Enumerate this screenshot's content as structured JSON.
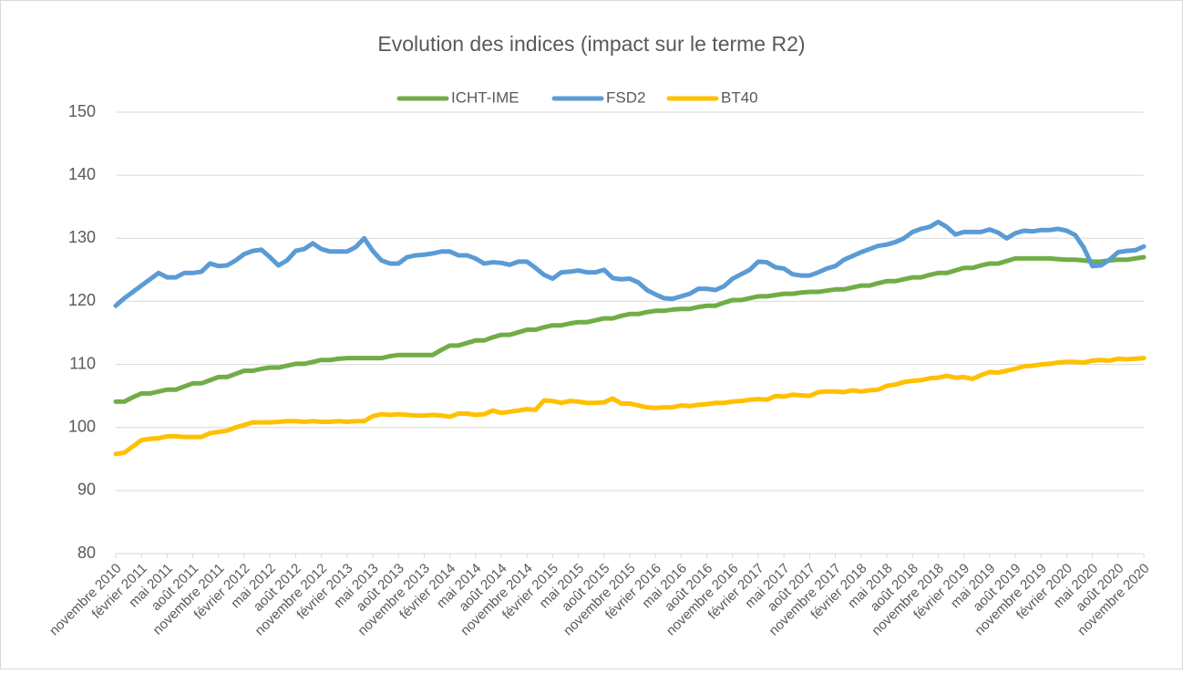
{
  "chart_data": {
    "type": "line",
    "title": "Evolution des indices (impact sur le terme R2)",
    "categories": [
      "novembre 2010",
      null,
      null,
      "février 2011",
      null,
      null,
      "mai 2011",
      null,
      null,
      "août 2011",
      null,
      null,
      "novembre 2011",
      null,
      null,
      "février 2012",
      null,
      null,
      "mai 2012",
      null,
      null,
      "août 2012",
      null,
      null,
      "novembre 2012",
      null,
      null,
      "février 2013",
      null,
      null,
      "mai 2013",
      null,
      null,
      "août 2013",
      null,
      null,
      "novembre 2013",
      null,
      null,
      "février 2014",
      null,
      null,
      "mai 2014",
      null,
      null,
      "août 2014",
      null,
      null,
      "novembre 2014",
      null,
      null,
      "février 2015",
      null,
      null,
      "mai 2015",
      null,
      null,
      "août 2015",
      null,
      null,
      "novembre 2015",
      null,
      null,
      "février 2016",
      null,
      null,
      "mai 2016",
      null,
      null,
      "août 2016",
      null,
      null,
      "novembre 2016",
      null,
      null,
      "février 2017",
      null,
      null,
      "mai 2017",
      null,
      null,
      "août 2017",
      null,
      null,
      "novembre 2017",
      null,
      null,
      "février 2018",
      null,
      null,
      "mai 2018",
      null,
      null,
      "août 2018",
      null,
      null,
      "novembre 2018",
      null,
      null,
      "février 2019",
      null,
      null,
      "mai 2019",
      null,
      null,
      "août 2019",
      null,
      null,
      "novembre 2019",
      null,
      null,
      "février 2020",
      null,
      null,
      "mai 2020",
      null,
      null,
      "août 2020",
      null,
      null,
      "novembre 2020"
    ],
    "series": [
      {
        "name": "ICHT-IME",
        "color": "#70ad47",
        "values": [
          104.1,
          104.1,
          104.8,
          105.4,
          105.4,
          105.7,
          106.0,
          106.0,
          106.5,
          107.0,
          107.0,
          107.5,
          108.0,
          108.0,
          108.5,
          109.0,
          109.0,
          109.3,
          109.5,
          109.5,
          109.8,
          110.1,
          110.1,
          110.4,
          110.7,
          110.7,
          110.9,
          111.0,
          111.0,
          111.0,
          111.0,
          111.0,
          111.3,
          111.5,
          111.5,
          111.5,
          111.5,
          111.5,
          112.3,
          113.0,
          113.0,
          113.4,
          113.8,
          113.8,
          114.3,
          114.7,
          114.7,
          115.1,
          115.5,
          115.5,
          115.9,
          116.2,
          116.2,
          116.5,
          116.7,
          116.7,
          117.0,
          117.3,
          117.3,
          117.7,
          118.0,
          118.0,
          118.3,
          118.5,
          118.5,
          118.7,
          118.8,
          118.8,
          119.1,
          119.3,
          119.3,
          119.8,
          120.2,
          120.2,
          120.5,
          120.8,
          120.8,
          121.0,
          121.2,
          121.2,
          121.4,
          121.5,
          121.5,
          121.7,
          121.9,
          121.9,
          122.2,
          122.5,
          122.5,
          122.9,
          123.2,
          123.2,
          123.5,
          123.8,
          123.8,
          124.2,
          124.5,
          124.5,
          124.9,
          125.3,
          125.3,
          125.7,
          126.0,
          126.0,
          126.4,
          126.8,
          126.8,
          126.8,
          126.8,
          126.8,
          126.7,
          126.6,
          126.6,
          126.5,
          126.3,
          126.3,
          126.5,
          126.6,
          126.6,
          126.8,
          127.0
        ]
      },
      {
        "name": "FSD2",
        "color": "#5b9bd5",
        "values": [
          119.3,
          120.5,
          121.5,
          122.5,
          123.5,
          124.5,
          123.8,
          123.8,
          124.5,
          124.5,
          124.7,
          126.0,
          125.6,
          125.7,
          126.5,
          127.5,
          128.0,
          128.2,
          127.0,
          125.7,
          126.5,
          128.0,
          128.3,
          129.2,
          128.3,
          127.9,
          127.9,
          127.9,
          128.6,
          130.0,
          128.0,
          126.5,
          126.0,
          126.0,
          127.0,
          127.3,
          127.4,
          127.6,
          127.9,
          127.9,
          127.3,
          127.3,
          126.8,
          126.0,
          126.2,
          126.1,
          125.8,
          126.3,
          126.3,
          125.3,
          124.2,
          123.6,
          124.6,
          124.7,
          124.9,
          124.6,
          124.6,
          125.0,
          123.7,
          123.5,
          123.6,
          123.0,
          121.8,
          121.1,
          120.5,
          120.4,
          120.8,
          121.2,
          122.0,
          122.0,
          121.8,
          122.4,
          123.6,
          124.3,
          125.0,
          126.3,
          126.2,
          125.4,
          125.2,
          124.3,
          124.1,
          124.1,
          124.6,
          125.2,
          125.6,
          126.6,
          127.2,
          127.8,
          128.3,
          128.8,
          129.0,
          129.4,
          130.0,
          131.0,
          131.5,
          131.8,
          132.6,
          131.8,
          130.6,
          131.0,
          131.0,
          131.0,
          131.4,
          130.9,
          130.0,
          130.8,
          131.2,
          131.1,
          131.3,
          131.3,
          131.5,
          131.2,
          130.5,
          128.5,
          125.6,
          125.7,
          126.6,
          127.8,
          128.0,
          128.1,
          128.7
        ]
      },
      {
        "name": "BT40",
        "color": "#ffc000",
        "values": [
          95.8,
          96.0,
          97.0,
          98.0,
          98.2,
          98.3,
          98.6,
          98.6,
          98.5,
          98.5,
          98.5,
          99.1,
          99.3,
          99.5,
          100.0,
          100.4,
          100.8,
          100.8,
          100.8,
          100.9,
          101.0,
          101.0,
          100.9,
          101.0,
          100.9,
          100.9,
          101.0,
          100.9,
          101.0,
          101.0,
          101.8,
          102.1,
          102.0,
          102.1,
          102.0,
          101.9,
          101.9,
          102.0,
          101.9,
          101.7,
          102.2,
          102.2,
          102.0,
          102.1,
          102.7,
          102.3,
          102.5,
          102.7,
          102.9,
          102.8,
          104.3,
          104.2,
          103.9,
          104.2,
          104.1,
          103.9,
          103.9,
          104.0,
          104.6,
          103.8,
          103.8,
          103.5,
          103.2,
          103.1,
          103.2,
          103.2,
          103.5,
          103.4,
          103.6,
          103.7,
          103.9,
          103.9,
          104.1,
          104.2,
          104.4,
          104.5,
          104.4,
          105.0,
          104.9,
          105.2,
          105.1,
          105.0,
          105.6,
          105.7,
          105.7,
          105.6,
          105.9,
          105.7,
          105.9,
          106.0,
          106.6,
          106.8,
          107.2,
          107.4,
          107.5,
          107.8,
          107.9,
          108.2,
          107.9,
          108.0,
          107.7,
          108.3,
          108.8,
          108.7,
          109.0,
          109.3,
          109.7,
          109.8,
          110.0,
          110.1,
          110.3,
          110.4,
          110.4,
          110.3,
          110.6,
          110.7,
          110.6,
          110.9,
          110.8,
          110.9,
          111.0
        ]
      }
    ],
    "ylim": [
      80,
      150
    ],
    "yticks": [
      80,
      90,
      100,
      110,
      120,
      130,
      140,
      150
    ],
    "grid": true,
    "legend": "top"
  }
}
